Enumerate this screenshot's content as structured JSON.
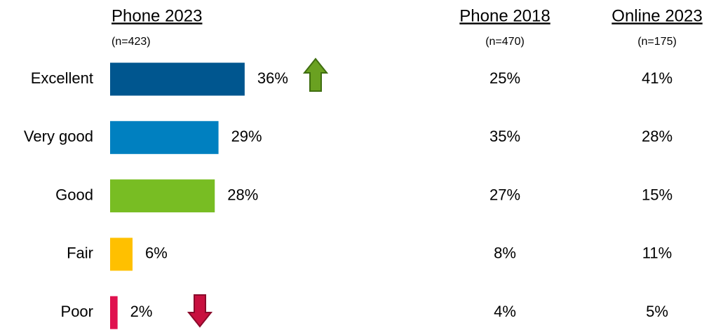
{
  "chart_data": {
    "type": "bar",
    "categories": [
      "Excellent",
      "Very good",
      "Good",
      "Fair",
      "Poor"
    ],
    "series": [
      {
        "name": "Phone 2023",
        "sample": "(n=423)",
        "colors": [
          "#00568f",
          "#0080c0",
          "#78bd23",
          "#ffc000",
          "#e0124f"
        ],
        "values": [
          36,
          29,
          28,
          6,
          2
        ],
        "value_labels": [
          "36%",
          "29%",
          "28%",
          "6%",
          "2%"
        ]
      },
      {
        "name": "Phone 2018",
        "sample": "(n=470)",
        "values": [
          25,
          35,
          27,
          8,
          4
        ],
        "value_labels": [
          "25%",
          "35%",
          "27%",
          "8%",
          "4%"
        ]
      },
      {
        "name": "Online 2023",
        "sample": "(n=175)",
        "values": [
          41,
          28,
          15,
          11,
          5
        ],
        "value_labels": [
          "41%",
          "28%",
          "15%",
          "11%",
          "5%"
        ]
      }
    ]
  }
}
